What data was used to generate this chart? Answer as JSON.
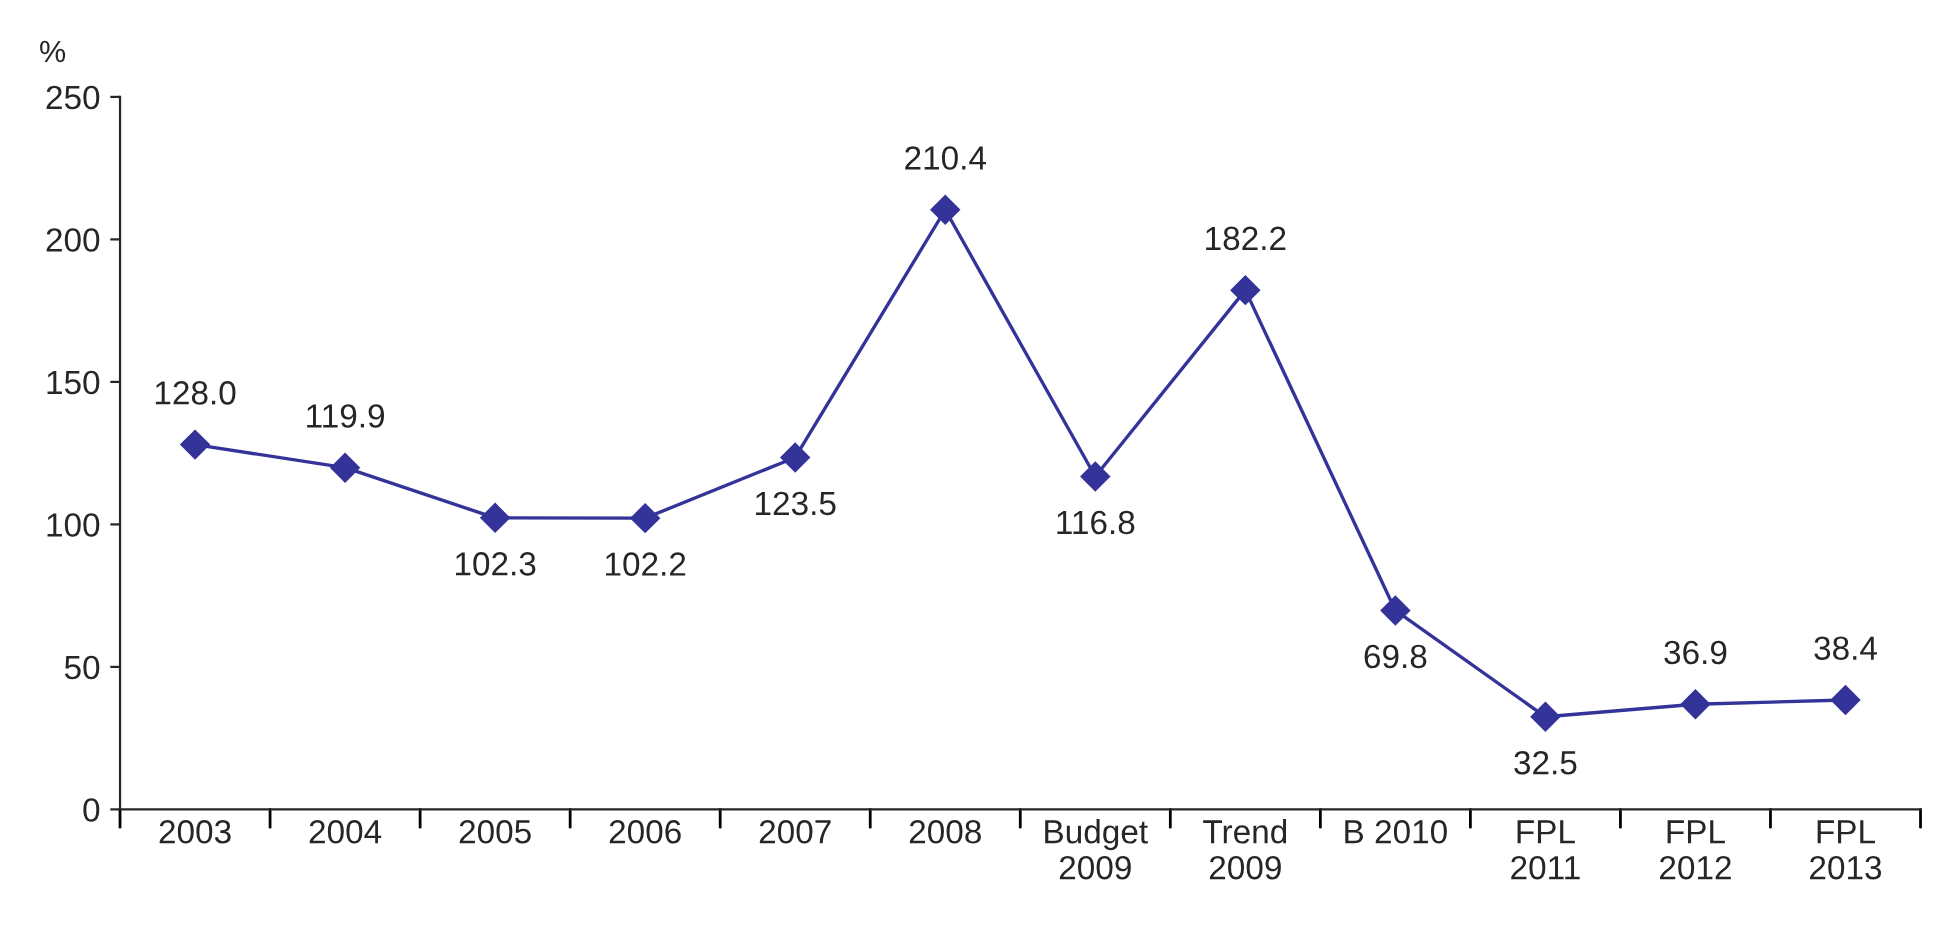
{
  "chart_data": {
    "type": "line",
    "ylabel": "%",
    "categories": [
      "2003",
      "2004",
      "2005",
      "2006",
      "2007",
      "2008",
      "Budget\n2009",
      "Trend\n2009",
      "B 2010",
      "FPL\n2011",
      "FPL\n2012",
      "FPL\n2013"
    ],
    "series": [
      {
        "color": "#333399",
        "values": [
          128.0,
          119.9,
          102.3,
          102.2,
          123.5,
          210.4,
          116.8,
          182.2,
          69.8,
          32.5,
          36.9,
          38.4
        ],
        "value_labels": [
          "128.0",
          "119.9",
          "102.3",
          "102.2",
          "123.5",
          "210.4",
          "116.8",
          "182.2",
          "69.8",
          "32.5",
          "36.9",
          "38.4"
        ]
      }
    ],
    "ylim": [
      0,
      250
    ],
    "yticks": [
      0,
      50,
      100,
      150,
      200,
      250
    ],
    "marker": "diamond",
    "line_style": "solid",
    "grid": false,
    "legend": false
  }
}
